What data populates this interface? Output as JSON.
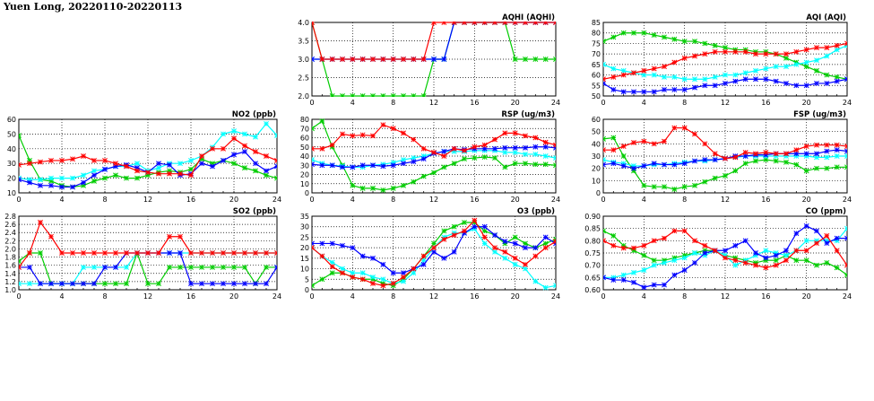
{
  "page_title": "Yuen Long, 20220110-20220113",
  "colors": {
    "red": "#ff0000",
    "green": "#00cc00",
    "cyan": "#00ffff",
    "blue": "#0000ff"
  },
  "chart_data": [
    {
      "id": "aqhi",
      "type": "line",
      "title": "AQHI (AQHI)",
      "xlim": [
        0,
        24
      ],
      "xticks": [
        0,
        4,
        8,
        12,
        16,
        20,
        24
      ],
      "ylim": [
        2.0,
        4.0
      ],
      "yticks": [
        "2.0",
        "2.5",
        "3.0",
        "3.5",
        "4.0"
      ],
      "grid": true,
      "series": [
        {
          "color": "#00cc00",
          "values": [
            4,
            3,
            2,
            2,
            2,
            2,
            2,
            2,
            2,
            2,
            2,
            2,
            3,
            3,
            4,
            4,
            4,
            4,
            4,
            4,
            3,
            3,
            3,
            3,
            3
          ]
        },
        {
          "color": "#00ffff",
          "values": [
            3,
            3,
            3,
            3,
            3,
            3,
            3,
            3,
            3,
            3,
            3,
            3,
            3,
            3,
            4,
            4,
            4,
            4,
            4,
            4,
            4,
            4,
            4,
            4,
            4
          ]
        },
        {
          "color": "#0000ff",
          "values": [
            3,
            3,
            3,
            3,
            3,
            3,
            3,
            3,
            3,
            3,
            3,
            3,
            3,
            3,
            4,
            4,
            4,
            4,
            4,
            4,
            4,
            4,
            4,
            4,
            4
          ]
        },
        {
          "color": "#ff0000",
          "values": [
            4,
            3,
            3,
            3,
            3,
            3,
            3,
            3,
            3,
            3,
            3,
            3,
            4,
            4,
            4,
            4,
            4,
            4,
            4,
            4,
            4,
            4,
            4,
            4,
            4
          ]
        }
      ]
    },
    {
      "id": "aqi",
      "type": "line",
      "title": "AQI (AQI)",
      "xlim": [
        0,
        24
      ],
      "xticks": [
        0,
        4,
        8,
        12,
        16,
        20,
        24
      ],
      "ylim": [
        50,
        85
      ],
      "yticks": [
        "50",
        "55",
        "60",
        "65",
        "70",
        "75",
        "80",
        "85"
      ],
      "grid": true,
      "series": [
        {
          "color": "#00cc00",
          "values": [
            76,
            78,
            80,
            80,
            80,
            79,
            78,
            77,
            76,
            76,
            75,
            74,
            73,
            72,
            72,
            71,
            71,
            70,
            68,
            66,
            64,
            62,
            60,
            59,
            58
          ]
        },
        {
          "color": "#00ffff",
          "values": [
            65,
            63,
            62,
            61,
            60,
            60,
            59,
            59,
            58,
            58,
            58,
            59,
            60,
            60,
            61,
            62,
            63,
            64,
            64,
            65,
            66,
            67,
            69,
            72,
            74
          ]
        },
        {
          "color": "#0000ff",
          "values": [
            56,
            53,
            52,
            52,
            52,
            52,
            53,
            53,
            53,
            54,
            55,
            55,
            56,
            57,
            58,
            58,
            58,
            57,
            56,
            55,
            55,
            56,
            56,
            57,
            58
          ]
        },
        {
          "color": "#ff0000",
          "values": [
            58,
            59,
            60,
            61,
            62,
            63,
            64,
            66,
            68,
            69,
            70,
            71,
            71,
            71,
            71,
            70,
            70,
            70,
            70,
            71,
            72,
            73,
            73,
            74,
            75
          ]
        }
      ]
    },
    {
      "id": "no2",
      "type": "line",
      "title": "NO2 (ppb)",
      "xlim": [
        0,
        24
      ],
      "xticks": [
        0,
        4,
        8,
        12,
        16,
        20,
        24
      ],
      "ylim": [
        10,
        60
      ],
      "yticks": [
        "10",
        "20",
        "30",
        "40",
        "50",
        "60"
      ],
      "grid": true,
      "series": [
        {
          "color": "#00cc00",
          "values": [
            49,
            32,
            19,
            18,
            15,
            14,
            15,
            18,
            20,
            22,
            20,
            20,
            22,
            24,
            25,
            24,
            26,
            33,
            30,
            32,
            30,
            27,
            25,
            22,
            20
          ]
        },
        {
          "color": "#00ffff",
          "values": [
            20,
            19,
            19,
            20,
            20,
            20,
            22,
            25,
            26,
            28,
            28,
            30,
            25,
            27,
            30,
            30,
            32,
            35,
            41,
            50,
            52,
            50,
            48,
            57,
            49
          ]
        },
        {
          "color": "#0000ff",
          "values": [
            19,
            17,
            15,
            15,
            14,
            14,
            17,
            22,
            26,
            28,
            29,
            27,
            24,
            30,
            29,
            22,
            23,
            30,
            28,
            32,
            36,
            38,
            30,
            25,
            28
          ]
        },
        {
          "color": "#ff0000",
          "values": [
            29,
            30,
            31,
            32,
            32,
            33,
            35,
            32,
            32,
            30,
            28,
            25,
            24,
            23,
            23,
            23,
            22,
            35,
            40,
            40,
            47,
            42,
            38,
            35,
            32
          ]
        }
      ]
    },
    {
      "id": "rsp",
      "type": "line",
      "title": "RSP (ug/m3)",
      "xlim": [
        0,
        24
      ],
      "xticks": [
        0,
        4,
        8,
        12,
        16,
        20,
        24
      ],
      "ylim": [
        0,
        80
      ],
      "yticks": [
        "0",
        "10",
        "20",
        "30",
        "40",
        "50",
        "60",
        "70",
        "80"
      ],
      "grid": true,
      "series": [
        {
          "color": "#00cc00",
          "values": [
            70,
            78,
            50,
            30,
            8,
            5,
            5,
            3,
            5,
            8,
            12,
            18,
            22,
            28,
            32,
            37,
            38,
            39,
            38,
            28,
            32,
            32,
            31,
            31,
            30
          ]
        },
        {
          "color": "#00ffff",
          "values": [
            36,
            32,
            30,
            29,
            28,
            28,
            30,
            31,
            33,
            36,
            38,
            40,
            43,
            45,
            45,
            45,
            46,
            46,
            46,
            44,
            44,
            42,
            42,
            40,
            38
          ]
        },
        {
          "color": "#0000ff",
          "values": [
            31,
            30,
            30,
            28,
            28,
            30,
            30,
            29,
            30,
            32,
            34,
            37,
            43,
            45,
            48,
            47,
            48,
            48,
            48,
            49,
            49,
            49,
            50,
            50,
            49
          ]
        },
        {
          "color": "#ff0000",
          "values": [
            48,
            48,
            52,
            64,
            62,
            63,
            62,
            74,
            70,
            65,
            58,
            48,
            44,
            40,
            48,
            46,
            50,
            52,
            58,
            65,
            65,
            62,
            60,
            55,
            52
          ]
        }
      ]
    },
    {
      "id": "fsp",
      "type": "line",
      "title": "FSP (ug/m3)",
      "xlim": [
        0,
        24
      ],
      "xticks": [
        0,
        4,
        8,
        12,
        16,
        20,
        24
      ],
      "ylim": [
        0,
        60
      ],
      "yticks": [
        "0",
        "10",
        "20",
        "30",
        "40",
        "50",
        "60"
      ],
      "grid": true,
      "series": [
        {
          "color": "#00cc00",
          "values": [
            44,
            45,
            30,
            18,
            6,
            5,
            5,
            3,
            5,
            6,
            9,
            12,
            14,
            18,
            24,
            26,
            27,
            26,
            25,
            23,
            18,
            20,
            20,
            21,
            21
          ]
        },
        {
          "color": "#00ffff",
          "values": [
            27,
            25,
            24,
            22,
            22,
            23,
            23,
            24,
            25,
            26,
            26,
            27,
            28,
            29,
            30,
            30,
            30,
            30,
            30,
            30,
            30,
            29,
            29,
            30,
            30
          ]
        },
        {
          "color": "#0000ff",
          "values": [
            23,
            24,
            22,
            20,
            22,
            24,
            23,
            23,
            24,
            26,
            27,
            27,
            28,
            30,
            30,
            31,
            31,
            32,
            32,
            32,
            32,
            32,
            34,
            35,
            34
          ]
        },
        {
          "color": "#ff0000",
          "values": [
            35,
            35,
            38,
            41,
            42,
            40,
            42,
            53,
            53,
            48,
            40,
            32,
            28,
            29,
            33,
            32,
            33,
            32,
            32,
            35,
            38,
            39,
            39,
            39,
            38
          ]
        }
      ]
    },
    {
      "id": "so2",
      "type": "line",
      "title": "SO2 (ppb)",
      "xlim": [
        0,
        24
      ],
      "xticks": [
        0,
        4,
        8,
        12,
        16,
        20,
        24
      ],
      "ylim": [
        1.0,
        2.8
      ],
      "yticks": [
        "1.0",
        "1.2",
        "1.4",
        "1.6",
        "1.8",
        "2.0",
        "2.2",
        "2.4",
        "2.6",
        "2.8"
      ],
      "grid": true,
      "series": [
        {
          "color": "#00cc00",
          "values": [
            1.7,
            1.9,
            1.9,
            1.15,
            1.15,
            1.15,
            1.15,
            1.15,
            1.15,
            1.15,
            1.15,
            1.9,
            1.15,
            1.15,
            1.55,
            1.55,
            1.55,
            1.55,
            1.55,
            1.55,
            1.55,
            1.55,
            1.15,
            1.55,
            1.55
          ]
        },
        {
          "color": "#00ffff",
          "values": [
            1.15,
            1.15,
            1.15,
            1.15,
            1.15,
            1.15,
            1.55,
            1.55,
            1.55,
            1.55,
            1.55,
            1.9,
            1.9,
            1.9,
            1.9,
            1.9,
            1.9,
            1.9,
            1.9,
            1.9,
            1.9,
            1.9,
            1.9,
            1.9,
            1.9
          ]
        },
        {
          "color": "#0000ff",
          "values": [
            1.55,
            1.55,
            1.15,
            1.15,
            1.15,
            1.15,
            1.15,
            1.15,
            1.55,
            1.55,
            1.9,
            1.9,
            1.9,
            1.9,
            1.9,
            1.9,
            1.15,
            1.15,
            1.15,
            1.15,
            1.15,
            1.15,
            1.15,
            1.15,
            1.55
          ]
        },
        {
          "color": "#ff0000",
          "values": [
            1.55,
            1.9,
            2.65,
            2.3,
            1.9,
            1.9,
            1.9,
            1.9,
            1.9,
            1.9,
            1.9,
            1.9,
            1.9,
            1.9,
            2.3,
            2.3,
            1.9,
            1.9,
            1.9,
            1.9,
            1.9,
            1.9,
            1.9,
            1.9,
            1.9
          ]
        }
      ]
    },
    {
      "id": "o3",
      "type": "line",
      "title": "O3 (ppb)",
      "xlim": [
        0,
        24
      ],
      "xticks": [
        0,
        4,
        8,
        12,
        16,
        20,
        24
      ],
      "ylim": [
        0,
        35
      ],
      "yticks": [
        "0",
        "5",
        "10",
        "15",
        "20",
        "25",
        "30",
        "35"
      ],
      "grid": true,
      "series": [
        {
          "color": "#00cc00",
          "values": [
            2,
            5,
            8,
            8,
            6,
            5,
            5,
            3,
            2,
            5,
            10,
            16,
            22,
            28,
            30,
            32,
            32,
            28,
            26,
            22,
            25,
            22,
            20,
            22,
            24
          ]
        },
        {
          "color": "#00ffff",
          "values": [
            20,
            16,
            13,
            10,
            8,
            8,
            6,
            5,
            3,
            4,
            8,
            14,
            20,
            25,
            27,
            27,
            29,
            22,
            18,
            15,
            12,
            10,
            4,
            1,
            2
          ]
        },
        {
          "color": "#0000ff",
          "values": [
            22,
            22,
            22,
            21,
            20,
            16,
            15,
            12,
            8,
            8,
            10,
            12,
            18,
            15,
            18,
            27,
            30,
            30,
            26,
            23,
            22,
            20,
            20,
            25,
            22
          ]
        },
        {
          "color": "#ff0000",
          "values": [
            20,
            16,
            11,
            8,
            6,
            5,
            3,
            2,
            3,
            6,
            10,
            16,
            20,
            24,
            26,
            28,
            33,
            25,
            20,
            18,
            15,
            12,
            16,
            20,
            23
          ]
        }
      ]
    },
    {
      "id": "co",
      "type": "line",
      "title": "CO (ppm)",
      "xlim": [
        0,
        24
      ],
      "xticks": [
        0,
        4,
        8,
        12,
        16,
        20,
        24
      ],
      "ylim": [
        0.6,
        0.9
      ],
      "yticks": [
        "0.60",
        "0.65",
        "0.70",
        "0.75",
        "0.80",
        "0.85",
        "0.90"
      ],
      "grid": true,
      "series": [
        {
          "color": "#00cc00",
          "values": [
            0.84,
            0.82,
            0.78,
            0.76,
            0.74,
            0.72,
            0.72,
            0.73,
            0.74,
            0.75,
            0.76,
            0.76,
            0.74,
            0.73,
            0.72,
            0.71,
            0.72,
            0.72,
            0.74,
            0.72,
            0.72,
            0.7,
            0.71,
            0.69,
            0.66
          ]
        },
        {
          "color": "#00ffff",
          "values": [
            0.65,
            0.65,
            0.66,
            0.67,
            0.68,
            0.7,
            0.71,
            0.72,
            0.73,
            0.75,
            0.74,
            0.76,
            0.74,
            0.7,
            0.72,
            0.74,
            0.76,
            0.75,
            0.74,
            0.76,
            0.8,
            0.8,
            0.8,
            0.8,
            0.85
          ]
        },
        {
          "color": "#0000ff",
          "values": [
            0.65,
            0.64,
            0.64,
            0.63,
            0.61,
            0.62,
            0.62,
            0.66,
            0.68,
            0.71,
            0.75,
            0.76,
            0.76,
            0.78,
            0.8,
            0.75,
            0.73,
            0.74,
            0.76,
            0.83,
            0.86,
            0.84,
            0.79,
            0.81,
            0.81
          ]
        },
        {
          "color": "#ff0000",
          "values": [
            0.8,
            0.78,
            0.77,
            0.77,
            0.78,
            0.8,
            0.81,
            0.84,
            0.84,
            0.8,
            0.78,
            0.76,
            0.73,
            0.72,
            0.71,
            0.7,
            0.69,
            0.7,
            0.72,
            0.76,
            0.76,
            0.79,
            0.82,
            0.76,
            0.7
          ]
        }
      ]
    }
  ]
}
